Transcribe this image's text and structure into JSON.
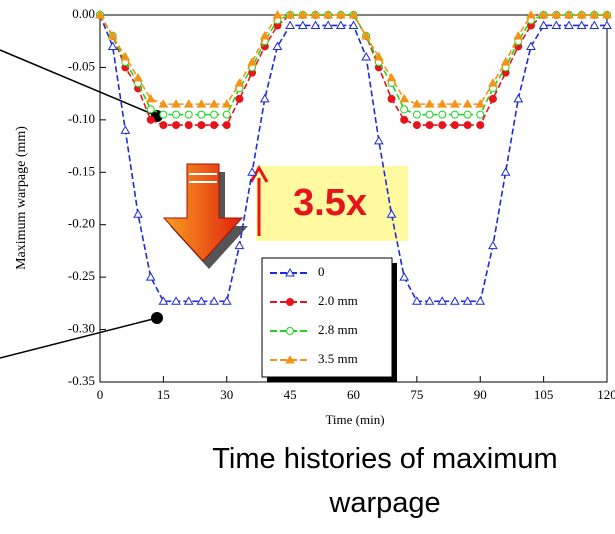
{
  "chart_data": {
    "type": "line",
    "title": "Time histories of maximum warpage",
    "xlabel": "Time (min)",
    "ylabel": "Maximum warpage (mm)",
    "annotation": "3.5x",
    "xlim": [
      0,
      120
    ],
    "xticks": [
      0,
      15,
      30,
      45,
      60,
      75,
      90,
      105,
      120
    ],
    "ylim": [
      -0.35,
      0
    ],
    "yticks": [
      {
        "value": -0.35,
        "label": "-0.35"
      },
      {
        "value": -0.3,
        "label": "-0.30"
      },
      {
        "value": -0.25,
        "label": "-0.25"
      },
      {
        "value": -0.2,
        "label": "-0.20"
      },
      {
        "value": -0.15,
        "label": "-0.15"
      },
      {
        "value": -0.1,
        "label": "-0.10"
      },
      {
        "value": -0.05,
        "label": "-0.05"
      },
      {
        "value": 0,
        "label": "0.00"
      }
    ],
    "x": [
      0,
      3,
      6,
      9,
      12,
      15,
      18,
      21,
      24,
      27,
      30,
      33,
      36,
      39,
      42,
      45,
      48,
      51,
      54,
      57,
      60,
      63,
      66,
      69,
      72,
      75,
      78,
      81,
      84,
      87,
      90,
      93,
      96,
      99,
      102,
      105,
      108,
      111,
      114,
      117,
      120
    ],
    "series": [
      {
        "name": "0",
        "color": "#1f2bd6",
        "marker": "triangle",
        "values": [
          0,
          -0.03,
          -0.11,
          -0.19,
          -0.25,
          -0.273,
          -0.273,
          -0.273,
          -0.273,
          -0.273,
          -0.273,
          -0.22,
          -0.15,
          -0.08,
          -0.03,
          -0.01,
          -0.01,
          -0.01,
          -0.01,
          -0.01,
          -0.01,
          -0.04,
          -0.12,
          -0.19,
          -0.25,
          -0.273,
          -0.273,
          -0.273,
          -0.273,
          -0.273,
          -0.273,
          -0.22,
          -0.15,
          -0.08,
          -0.03,
          -0.01,
          -0.01,
          -0.01,
          -0.01,
          -0.01,
          -0.01
        ]
      },
      {
        "name": "2.0 mm",
        "color": "#e8141b",
        "marker": "dot",
        "values": [
          0,
          -0.02,
          -0.05,
          -0.07,
          -0.1,
          -0.105,
          -0.105,
          -0.105,
          -0.105,
          -0.105,
          -0.105,
          -0.08,
          -0.055,
          -0.03,
          -0.01,
          0,
          0,
          0,
          0,
          0,
          0,
          -0.02,
          -0.05,
          -0.08,
          -0.1,
          -0.105,
          -0.105,
          -0.105,
          -0.105,
          -0.105,
          -0.105,
          -0.08,
          -0.055,
          -0.03,
          -0.01,
          0,
          0,
          0,
          0,
          0,
          0
        ]
      },
      {
        "name": "2.8 mm",
        "color": "#1cd61c",
        "marker": "circle",
        "values": [
          0,
          -0.02,
          -0.045,
          -0.065,
          -0.09,
          -0.095,
          -0.095,
          -0.095,
          -0.095,
          -0.095,
          -0.095,
          -0.07,
          -0.05,
          -0.025,
          -0.005,
          0,
          0,
          0,
          0,
          0,
          0,
          -0.02,
          -0.045,
          -0.065,
          -0.09,
          -0.095,
          -0.095,
          -0.095,
          -0.095,
          -0.095,
          -0.095,
          -0.07,
          -0.05,
          -0.025,
          -0.005,
          0,
          0,
          0,
          0,
          0,
          0
        ]
      },
      {
        "name": "3.5 mm",
        "color": "#f39419",
        "marker": "filled-triangle",
        "values": [
          0,
          -0.02,
          -0.04,
          -0.06,
          -0.08,
          -0.085,
          -0.085,
          -0.085,
          -0.085,
          -0.085,
          -0.085,
          -0.065,
          -0.045,
          -0.02,
          0,
          0,
          0,
          0,
          0,
          0,
          0,
          -0.02,
          -0.04,
          -0.06,
          -0.08,
          -0.085,
          -0.085,
          -0.085,
          -0.085,
          -0.085,
          -0.085,
          -0.065,
          -0.045,
          -0.02,
          0,
          0,
          0,
          0,
          0,
          0,
          0
        ]
      }
    ]
  }
}
